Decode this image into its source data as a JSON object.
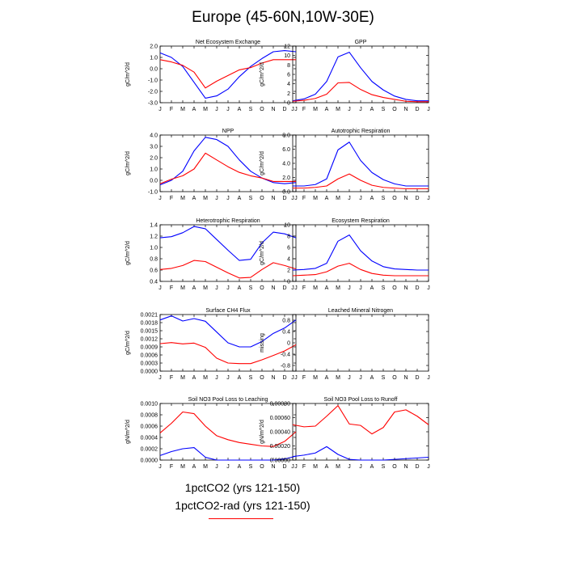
{
  "title": "Europe (45-60N,10W-30E)",
  "colors": {
    "series1": "#0000ff",
    "series2": "#ff0000"
  },
  "legend": [
    {
      "label": "1pctCO2 (yrs 121-150)",
      "color": "#0000ff"
    },
    {
      "label": "1pctCO2-rad (yrs 121-150)",
      "color": "#ff0000"
    }
  ],
  "months": [
    "J",
    "F",
    "M",
    "A",
    "M",
    "J",
    "J",
    "A",
    "S",
    "O",
    "N",
    "D",
    "J"
  ],
  "chart_data": [
    {
      "type": "line",
      "title": "Net Ecosystem Exchange",
      "ylabel": "gC/m^2/d",
      "ylim": [
        -3.0,
        2.0
      ],
      "yticks": [
        -3.0,
        -2.0,
        -1.0,
        0.0,
        1.0,
        2.0
      ],
      "yticklabels": [
        "-3.0",
        "-2.0",
        "-1.0",
        "0.0",
        "1.0",
        "2.0"
      ],
      "series": [
        {
          "values": [
            1.4,
            1.0,
            0.2,
            -1.2,
            -2.6,
            -2.4,
            -1.8,
            -0.7,
            0.2,
            0.9,
            1.5,
            1.6,
            1.5
          ]
        },
        {
          "values": [
            0.8,
            0.6,
            0.3,
            -0.3,
            -1.7,
            -1.1,
            -0.6,
            -0.1,
            0.1,
            0.5,
            0.8,
            0.8,
            0.8
          ]
        }
      ]
    },
    {
      "type": "line",
      "title": "GPP",
      "ylabel": "gC/m^2/d",
      "ylim": [
        0,
        12
      ],
      "yticks": [
        0,
        2,
        4,
        6,
        8,
        10,
        12
      ],
      "yticklabels": [
        "0",
        "2",
        "4",
        "6",
        "8",
        "10",
        "12"
      ],
      "series": [
        {
          "values": [
            0.4,
            0.8,
            1.8,
            4.5,
            9.7,
            10.7,
            7.4,
            4.5,
            2.7,
            1.4,
            0.7,
            0.4,
            0.4
          ]
        },
        {
          "values": [
            0.3,
            0.5,
            0.9,
            1.8,
            4.2,
            4.3,
            2.8,
            1.7,
            1.1,
            0.7,
            0.3,
            0.2,
            0.2
          ]
        }
      ]
    },
    {
      "type": "line",
      "title": "NPP",
      "ylabel": "gC/m^2/d",
      "ylim": [
        -1.0,
        4.0
      ],
      "yticks": [
        -1.0,
        0.0,
        1.0,
        2.0,
        3.0,
        4.0
      ],
      "yticklabels": [
        "-1.0",
        "0.0",
        "1.0",
        "2.0",
        "3.0",
        "4.0"
      ],
      "series": [
        {
          "values": [
            -0.4,
            0.0,
            0.8,
            2.6,
            3.8,
            3.6,
            3.0,
            1.8,
            0.8,
            0.2,
            -0.2,
            -0.3,
            -0.2
          ]
        },
        {
          "values": [
            -0.3,
            0.1,
            0.4,
            1.0,
            2.4,
            1.8,
            1.2,
            0.7,
            0.4,
            0.2,
            -0.1,
            -0.1,
            -0.1
          ]
        }
      ]
    },
    {
      "type": "line",
      "title": "Autotrophic Respiration",
      "ylabel": "gC/m^2/d",
      "ylim": [
        0.0,
        8.0
      ],
      "yticks": [
        0.0,
        2.0,
        4.0,
        6.0,
        8.0
      ],
      "yticklabels": [
        "0.0",
        "2.0",
        "4.0",
        "6.0",
        "8.0"
      ],
      "series": [
        {
          "values": [
            0.8,
            0.8,
            1.0,
            1.8,
            5.9,
            7.0,
            4.4,
            2.7,
            1.7,
            1.1,
            0.8,
            0.8,
            0.8
          ]
        },
        {
          "values": [
            0.5,
            0.5,
            0.6,
            0.8,
            1.8,
            2.5,
            1.6,
            0.9,
            0.6,
            0.5,
            0.4,
            0.4,
            0.4
          ]
        }
      ]
    },
    {
      "type": "line",
      "title": "Heterotrophic Respiration",
      "ylabel": "gC/m^2/d",
      "ylim": [
        0.4,
        1.4
      ],
      "yticks": [
        0.4,
        0.6,
        0.8,
        1.0,
        1.2,
        1.4
      ],
      "yticklabels": [
        "0.4",
        "0.6",
        "0.8",
        "1.0",
        "1.2",
        "1.4"
      ],
      "series": [
        {
          "values": [
            1.17,
            1.19,
            1.26,
            1.37,
            1.33,
            1.14,
            0.95,
            0.77,
            0.79,
            1.08,
            1.27,
            1.24,
            1.17
          ]
        },
        {
          "values": [
            0.61,
            0.63,
            0.68,
            0.77,
            0.75,
            0.65,
            0.55,
            0.46,
            0.47,
            0.61,
            0.73,
            0.68,
            0.62
          ]
        }
      ]
    },
    {
      "type": "line",
      "title": "Ecosystem Respiration",
      "ylabel": "gC/m^2/d",
      "ylim": [
        0,
        10
      ],
      "yticks": [
        0,
        2,
        4,
        6,
        8,
        10
      ],
      "yticklabels": [
        "0",
        "2",
        "4",
        "6",
        "8",
        "10"
      ],
      "series": [
        {
          "values": [
            2.0,
            2.1,
            2.3,
            3.2,
            7.1,
            8.2,
            5.4,
            3.6,
            2.6,
            2.2,
            2.1,
            2.0,
            2.0
          ]
        },
        {
          "values": [
            1.0,
            1.1,
            1.2,
            1.7,
            2.7,
            3.2,
            2.1,
            1.4,
            1.1,
            1.0,
            1.0,
            1.0,
            1.0
          ]
        }
      ]
    },
    {
      "type": "line",
      "title": "Surface CH4 Flux",
      "ylabel": "gC/m^2/d",
      "ylim": [
        0.0,
        0.0021
      ],
      "yticks": [
        0.0,
        0.0003,
        0.0006,
        0.0009,
        0.0012,
        0.0015,
        0.0018,
        0.0021
      ],
      "yticklabels": [
        "0.0000",
        "0.0003",
        "0.0006",
        "0.0009",
        "0.0012",
        "0.0015",
        "0.0018",
        "0.0021"
      ],
      "series": [
        {
          "values": [
            0.0019,
            0.00205,
            0.00186,
            0.00195,
            0.00185,
            0.00145,
            0.00105,
            0.0009,
            0.0009,
            0.0011,
            0.0014,
            0.0016,
            0.0019
          ]
        },
        {
          "values": [
            0.00102,
            0.00106,
            0.00101,
            0.00104,
            0.00088,
            0.00048,
            0.0003,
            0.00028,
            0.00028,
            0.00042,
            0.00058,
            0.00075,
            0.00098
          ]
        }
      ]
    },
    {
      "type": "line",
      "title": "Leached Mineral Nitrogen",
      "ylabel": "missing",
      "ylim": [
        -1.0,
        1.0
      ],
      "yticks": [
        -0.8,
        -0.4,
        0.0,
        0.4,
        0.8
      ],
      "yticklabels": [
        "-0.8",
        "-0.4",
        "0",
        "0.4",
        "0.8"
      ],
      "series": []
    },
    {
      "type": "line",
      "title": "Soil NO3 Pool Loss to Leaching",
      "ylabel": "gN/m^2/d",
      "ylim": [
        0.0,
        0.001
      ],
      "yticks": [
        0.0,
        0.0002,
        0.0004,
        0.0006,
        0.0008,
        0.001
      ],
      "yticklabels": [
        "0.0000",
        "0.0002",
        "0.0004",
        "0.0006",
        "0.0008",
        "0.0010"
      ],
      "series": [
        {
          "values": [
            8e-05,
            0.00015,
            0.0002,
            0.00022,
            5e-05,
            0.0,
            0.0,
            0.0,
            0.0,
            0.0,
            0.0,
            2e-05,
            7e-05
          ]
        },
        {
          "values": [
            0.00048,
            0.00065,
            0.00085,
            0.00082,
            0.0006,
            0.00043,
            0.00036,
            0.00031,
            0.00028,
            0.00025,
            0.00024,
            0.00033,
            0.0005
          ]
        }
      ]
    },
    {
      "type": "line",
      "title": "Soil NO3 Pool Loss to Runoff",
      "ylabel": "gN/m^2/d",
      "ylim": [
        0.0,
        0.0008
      ],
      "yticks": [
        0.0,
        0.0002,
        0.0004,
        0.0006,
        0.0008
      ],
      "yticklabels": [
        "0.00000",
        "0.00020",
        "0.00040",
        "0.00060",
        "0.00080"
      ],
      "series": [
        {
          "values": [
            5e-05,
            7e-05,
            0.0001,
            0.00019,
            8e-05,
            1e-05,
            0.0,
            0.0,
            0.0,
            1e-05,
            2e-05,
            3e-05,
            4e-05
          ]
        },
        {
          "values": [
            0.0005,
            0.00047,
            0.00048,
            0.00062,
            0.00077,
            0.00051,
            0.00049,
            0.00037,
            0.00046,
            0.00068,
            0.00071,
            0.00062,
            0.0005
          ]
        }
      ]
    }
  ]
}
